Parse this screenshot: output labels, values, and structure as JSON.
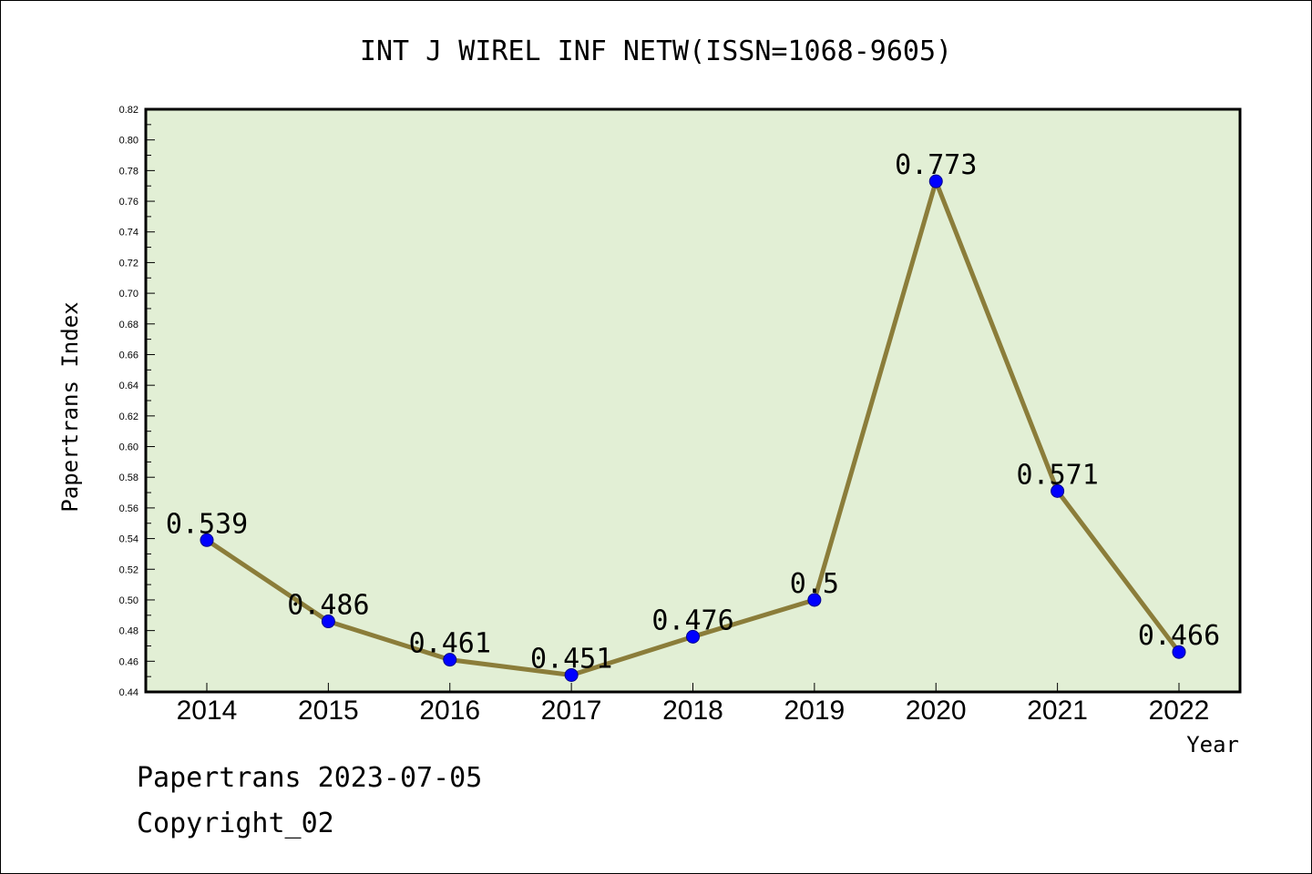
{
  "chart_data": {
    "type": "line",
    "title": "INT J WIREL INF NETW(ISSN=1068-9605)",
    "xlabel": "Year",
    "ylabel": "Papertrans Index",
    "categories": [
      "2014",
      "2015",
      "2016",
      "2017",
      "2018",
      "2019",
      "2020",
      "2021",
      "2022"
    ],
    "values": [
      0.539,
      0.486,
      0.461,
      0.451,
      0.476,
      0.5,
      0.773,
      0.571,
      0.466
    ],
    "data_labels": [
      "0.539",
      "0.486",
      "0.461",
      "0.451",
      "0.476",
      "0.5",
      "0.773",
      "0.571",
      "0.466"
    ],
    "ylim": [
      0.44,
      0.82
    ],
    "yticks": [
      "0.44",
      "0.46",
      "0.48",
      "0.50",
      "0.52",
      "0.54",
      "0.56",
      "0.58",
      "0.60",
      "0.62",
      "0.64",
      "0.66",
      "0.68",
      "0.70",
      "0.72",
      "0.74",
      "0.76",
      "0.78",
      "0.80",
      "0.82"
    ],
    "grid": false,
    "colors": {
      "plot_background": "#e2efd5",
      "line": "#8b7d3a",
      "marker": "#0000ff",
      "marker_edge": "#00008b"
    }
  },
  "footer": {
    "date_line": "Papertrans 2023-07-05",
    "copyright": "Copyright_02"
  }
}
